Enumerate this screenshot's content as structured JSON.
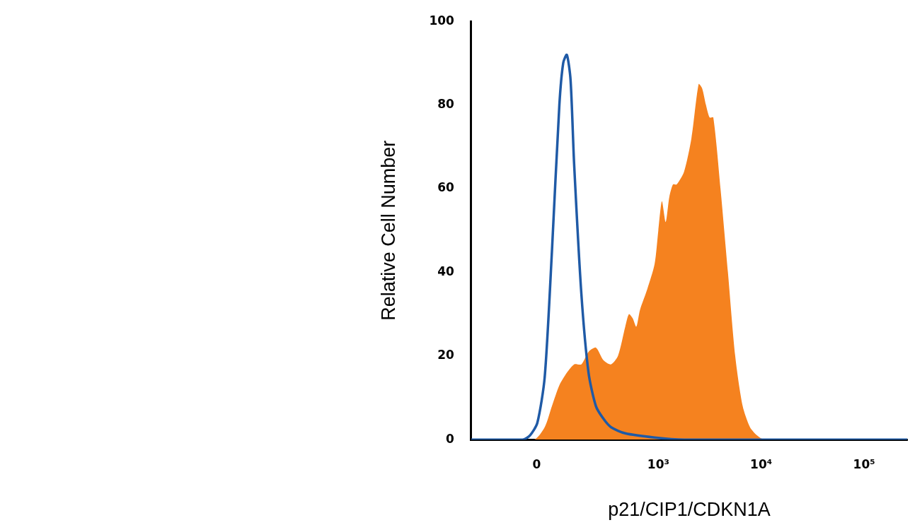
{
  "chart_data": {
    "type": "line",
    "x_label": "p21/CIP1/CDKN1A",
    "y_label": "Relative Cell Number",
    "log": "x",
    "grid": false,
    "xlim": [
      -270,
      262144
    ],
    "xticks": [
      0,
      {
        "value": 1000,
        "label": "10³"
      },
      {
        "value": 10000,
        "label": "10⁴"
      },
      {
        "value": 100000,
        "label": "10⁵"
      }
    ],
    "ylim": [
      0,
      100
    ],
    "yticks": [
      0,
      20,
      40,
      60,
      80,
      100
    ],
    "series": [
      {
        "type": "area",
        "color": "#f5821f",
        "x": [
          -270,
          -8.7,
          24,
          46,
          70,
          96,
          124,
          155,
          190,
          231,
          279,
          335,
          396,
          470,
          512,
          558,
          606,
          659,
          779,
          919,
          999,
          1083,
          1179,
          1280,
          1390,
          1510,
          1780,
          2100,
          2470,
          2670,
          2910,
          3160,
          3430,
          4030,
          4760,
          5600,
          6620,
          7790,
          9140,
          10800,
          262144
        ],
        "values": [
          0,
          0,
          3,
          8,
          13,
          16,
          18,
          18,
          21,
          22,
          19,
          18,
          20,
          27,
          30,
          29,
          27,
          31,
          36,
          42,
          50,
          57,
          52,
          58,
          61,
          61,
          64,
          72,
          85,
          84,
          80,
          77,
          77,
          60,
          40,
          20,
          8,
          3,
          1,
          0,
          0
        ]
      },
      {
        "type": "line",
        "color": "#1f5aa6",
        "x": [
          -270,
          -42,
          -20,
          2,
          24,
          46,
          70,
          83,
          96,
          110,
          124,
          155,
          190,
          231,
          279,
          335,
          470,
          919,
          1780,
          262144
        ],
        "values": [
          0,
          0,
          1,
          4,
          15,
          45,
          80,
          90,
          92,
          86,
          66,
          35,
          16,
          8,
          5,
          3,
          1.5,
          0.5,
          0,
          0
        ]
      }
    ]
  }
}
